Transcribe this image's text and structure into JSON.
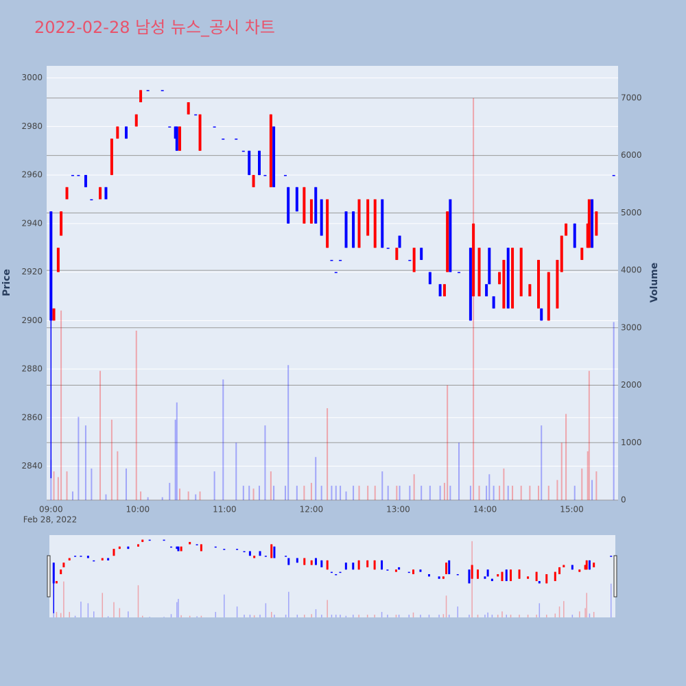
{
  "chart_data": {
    "type": "candlestick",
    "title": "2022-02-28 남성 뉴스_공시 차트",
    "y_title": "Price",
    "y2_title": "Volume",
    "x_date_label": "Feb 28, 2022",
    "increasing_color": "#ff0000",
    "decreasing_color": "#0000ff",
    "xlim": [
      "2022-02-28 08:57",
      "2022-02-28 15:32"
    ],
    "xticks": [
      {
        "value": "2022-02-28 09:00",
        "label": "09:00"
      },
      {
        "value": "2022-02-28 10:00",
        "label": "10:00"
      },
      {
        "value": "2022-02-28 11:00",
        "label": "11:00"
      },
      {
        "value": "2022-02-28 12:00",
        "label": "12:00"
      },
      {
        "value": "2022-02-28 13:00",
        "label": "13:00"
      },
      {
        "value": "2022-02-28 14:00",
        "label": "14:00"
      },
      {
        "value": "2022-02-28 15:00",
        "label": "15:00"
      }
    ],
    "ylim": [
      2826,
      3005
    ],
    "yticks": [
      2840,
      2860,
      2880,
      2900,
      2920,
      2940,
      2960,
      2980,
      3000
    ],
    "y2lim": [
      0,
      7560
    ],
    "y2ticks": [
      0,
      1000,
      2000,
      3000,
      4000,
      5000,
      6000,
      7000
    ],
    "grid": true,
    "rangeslider": true,
    "x": [
      "2022-02-28 09:00",
      "2022-02-28 09:02",
      "2022-02-28 09:05",
      "2022-02-28 09:07",
      "2022-02-28 09:11",
      "2022-02-28 09:15",
      "2022-02-28 09:19",
      "2022-02-28 09:24",
      "2022-02-28 09:28",
      "2022-02-28 09:34",
      "2022-02-28 09:38",
      "2022-02-28 09:42",
      "2022-02-28 09:46",
      "2022-02-28 09:52",
      "2022-02-28 09:59",
      "2022-02-28 10:02",
      "2022-02-28 10:07",
      "2022-02-28 10:17",
      "2022-02-28 10:22",
      "2022-02-28 10:26",
      "2022-02-28 10:27",
      "2022-02-28 10:29",
      "2022-02-28 10:35",
      "2022-02-28 10:40",
      "2022-02-28 10:43",
      "2022-02-28 10:53",
      "2022-02-28 10:59",
      "2022-02-28 11:08",
      "2022-02-28 11:13",
      "2022-02-28 11:17",
      "2022-02-28 11:20",
      "2022-02-28 11:24",
      "2022-02-28 11:28",
      "2022-02-28 11:32",
      "2022-02-28 11:34",
      "2022-02-28 11:42",
      "2022-02-28 11:44",
      "2022-02-28 11:50",
      "2022-02-28 11:55",
      "2022-02-28 12:00",
      "2022-02-28 12:03",
      "2022-02-28 12:07",
      "2022-02-28 12:11",
      "2022-02-28 12:14",
      "2022-02-28 12:17",
      "2022-02-28 12:20",
      "2022-02-28 12:24",
      "2022-02-28 12:29",
      "2022-02-28 12:33",
      "2022-02-28 12:39",
      "2022-02-28 12:44",
      "2022-02-28 12:49",
      "2022-02-28 12:53",
      "2022-02-28 12:59",
      "2022-02-28 13:01",
      "2022-02-28 13:08",
      "2022-02-28 13:11",
      "2022-02-28 13:16",
      "2022-02-28 13:22",
      "2022-02-28 13:29",
      "2022-02-28 13:32",
      "2022-02-28 13:34",
      "2022-02-28 13:36",
      "2022-02-28 13:42",
      "2022-02-28 13:50",
      "2022-02-28 13:52",
      "2022-02-28 13:56",
      "2022-02-28 14:01",
      "2022-02-28 14:03",
      "2022-02-28 14:06",
      "2022-02-28 14:10",
      "2022-02-28 14:13",
      "2022-02-28 14:16",
      "2022-02-28 14:19",
      "2022-02-28 14:25",
      "2022-02-28 14:31",
      "2022-02-28 14:37",
      "2022-02-28 14:39",
      "2022-02-28 14:44",
      "2022-02-28 14:50",
      "2022-02-28 14:53",
      "2022-02-28 14:56",
      "2022-02-28 15:02",
      "2022-02-28 15:07",
      "2022-02-28 15:11",
      "2022-02-28 15:12",
      "2022-02-28 15:14",
      "2022-02-28 15:17",
      "2022-02-28 15:29"
    ],
    "open": [
      2945,
      2900,
      2920,
      2935,
      2950,
      2960,
      2960,
      2960,
      2950,
      2950,
      2955,
      2960,
      2975,
      2980,
      2980,
      2990,
      2995,
      2995,
      2980,
      2980,
      2980,
      2970,
      2985,
      2985,
      2970,
      2980,
      2975,
      2975,
      2970,
      2970,
      2955,
      2970,
      2960,
      2955,
      2980,
      2960,
      2955,
      2955,
      2940,
      2940,
      2955,
      2950,
      2930,
      2925,
      2920,
      2925,
      2945,
      2945,
      2930,
      2935,
      2930,
      2950,
      2930,
      2925,
      2935,
      2925,
      2920,
      2930,
      2920,
      2915,
      2910,
      2920,
      2950,
      2920,
      2930,
      2910,
      2910,
      2915,
      2930,
      2910,
      2915,
      2905,
      2930,
      2905,
      2910,
      2910,
      2905,
      2905,
      2900,
      2905,
      2920,
      2935,
      2940,
      2925,
      2930,
      2930,
      2950,
      2935,
      2960
    ],
    "high": [
      2945,
      2905,
      2930,
      2945,
      2955,
      2960,
      2960,
      2960,
      2950,
      2955,
      2955,
      2975,
      2980,
      2980,
      2985,
      2995,
      2995,
      2995,
      2980,
      2980,
      2980,
      2980,
      2990,
      2985,
      2985,
      2980,
      2975,
      2975,
      2970,
      2970,
      2960,
      2970,
      2960,
      2985,
      2980,
      2960,
      2955,
      2955,
      2955,
      2950,
      2955,
      2950,
      2950,
      2925,
      2920,
      2925,
      2945,
      2945,
      2950,
      2950,
      2950,
      2950,
      2930,
      2930,
      2935,
      2925,
      2930,
      2930,
      2920,
      2915,
      2915,
      2945,
      2950,
      2920,
      2930,
      2940,
      2930,
      2915,
      2930,
      2910,
      2920,
      2925,
      2930,
      2930,
      2930,
      2915,
      2925,
      2905,
      2920,
      2925,
      2935,
      2940,
      2940,
      2930,
      2940,
      2950,
      2950,
      2945,
      2960
    ],
    "low": [
      2835,
      2900,
      2920,
      2935,
      2950,
      2960,
      2960,
      2955,
      2950,
      2950,
      2950,
      2960,
      2975,
      2975,
      2980,
      2990,
      2995,
      2995,
      2980,
      2975,
      2970,
      2970,
      2985,
      2985,
      2970,
      2980,
      2975,
      2975,
      2970,
      2960,
      2955,
      2960,
      2960,
      2955,
      2955,
      2960,
      2940,
      2945,
      2940,
      2940,
      2940,
      2935,
      2930,
      2925,
      2920,
      2925,
      2930,
      2930,
      2930,
      2935,
      2930,
      2930,
      2930,
      2925,
      2930,
      2925,
      2920,
      2925,
      2915,
      2910,
      2910,
      2920,
      2920,
      2920,
      2900,
      2910,
      2910,
      2910,
      2915,
      2905,
      2915,
      2905,
      2905,
      2905,
      2910,
      2910,
      2905,
      2900,
      2900,
      2905,
      2920,
      2935,
      2930,
      2925,
      2930,
      2930,
      2930,
      2935,
      2960
    ],
    "close": [
      2900,
      2905,
      2930,
      2945,
      2955,
      2960,
      2960,
      2955,
      2950,
      2955,
      2950,
      2975,
      2980,
      2975,
      2985,
      2995,
      2995,
      2995,
      2980,
      2975,
      2970,
      2980,
      2990,
      2985,
      2985,
      2980,
      2975,
      2975,
      2970,
      2960,
      2960,
      2960,
      2960,
      2985,
      2955,
      2960,
      2940,
      2945,
      2955,
      2950,
      2940,
      2935,
      2950,
      2925,
      2920,
      2925,
      2930,
      2930,
      2950,
      2950,
      2950,
      2930,
      2930,
      2930,
      2930,
      2925,
      2930,
      2925,
      2915,
      2910,
      2915,
      2945,
      2920,
      2920,
      2900,
      2940,
      2930,
      2910,
      2915,
      2905,
      2920,
      2925,
      2905,
      2930,
      2930,
      2915,
      2925,
      2900,
      2920,
      2925,
      2935,
      2940,
      2930,
      2930,
      2940,
      2950,
      2930,
      2945,
      2960
    ],
    "volume": [
      700,
      500,
      400,
      3300,
      500,
      150,
      1450,
      1300,
      550,
      2250,
      100,
      1400,
      850,
      550,
      2950,
      150,
      50,
      50,
      300,
      1400,
      1700,
      200,
      150,
      100,
      150,
      500,
      2100,
      1000,
      250,
      250,
      200,
      250,
      1300,
      500,
      250,
      250,
      2350,
      250,
      250,
      300,
      750,
      250,
      1600,
      250,
      250,
      250,
      150,
      250,
      250,
      250,
      250,
      500,
      250,
      250,
      250,
      250,
      450,
      250,
      250,
      250,
      300,
      2000,
      250,
      1000,
      250,
      7000,
      250,
      250,
      450,
      250,
      250,
      550,
      250,
      250,
      250,
      250,
      250,
      1300,
      250,
      350,
      1000,
      1500,
      250,
      550,
      850,
      2250,
      350,
      500,
      3100
    ]
  }
}
